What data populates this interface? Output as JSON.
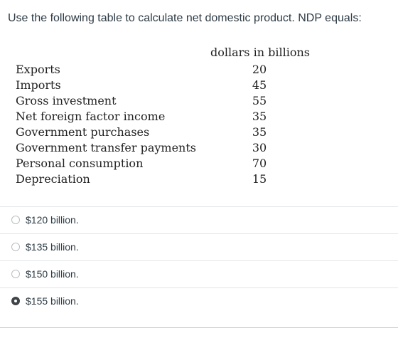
{
  "question": {
    "text": "Use the following table to calculate net domestic product. NDP equals:"
  },
  "table": {
    "header": "dollars in billions",
    "rows": [
      {
        "label": "Exports",
        "value": "20"
      },
      {
        "label": "Imports",
        "value": "45"
      },
      {
        "label": "Gross investment",
        "value": "55"
      },
      {
        "label": "Net foreign factor income",
        "value": "35"
      },
      {
        "label": "Government purchases",
        "value": "35"
      },
      {
        "label": "Government transfer payments",
        "value": "30"
      },
      {
        "label": "Personal consumption",
        "value": "70"
      },
      {
        "label": "Depreciation",
        "value": "15"
      }
    ]
  },
  "answers": [
    {
      "label": "$120 billion.",
      "selected": false
    },
    {
      "label": "$135 billion.",
      "selected": false
    },
    {
      "label": "$150 billion.",
      "selected": false
    },
    {
      "label": "$155 billion.",
      "selected": true
    }
  ]
}
